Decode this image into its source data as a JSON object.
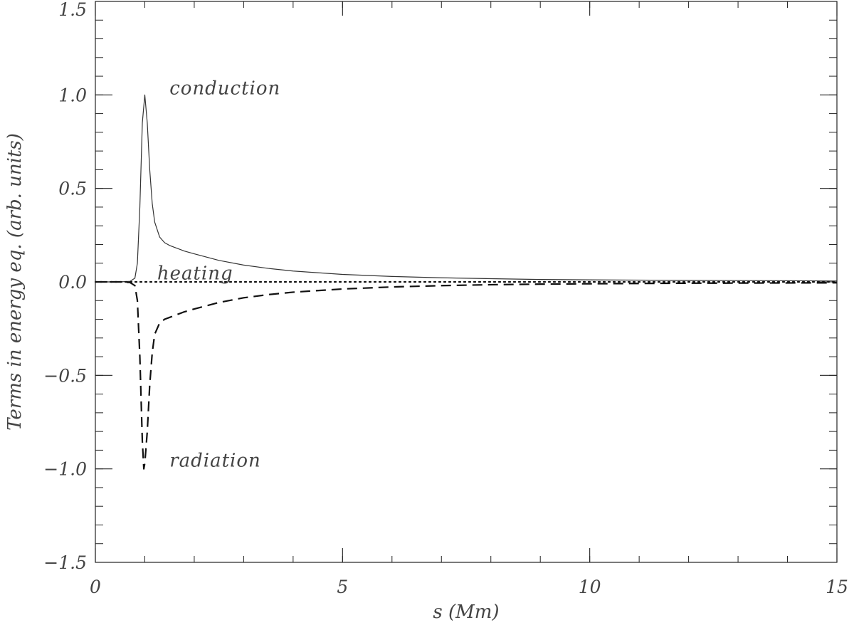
{
  "chart_data": {
    "type": "line",
    "title": "",
    "xlabel": "s (Mm)",
    "ylabel": "Terms in energy eq. (arb. units)",
    "xlim": [
      0,
      15
    ],
    "ylim": [
      -1.5,
      1.5
    ],
    "x_ticks": [
      0,
      5,
      10,
      15
    ],
    "x_tick_labels": [
      "0",
      "5",
      "10",
      "15"
    ],
    "y_ticks": [
      -1.5,
      -1.0,
      -0.5,
      0.0,
      0.5,
      1.0,
      1.5
    ],
    "y_tick_labels": [
      "−1.5",
      "−1.0",
      "−0.5",
      "0.0",
      "0.5",
      "1.0",
      "1.5"
    ],
    "grid": false,
    "series": [
      {
        "name": "conduction",
        "style": "solid",
        "x": [
          0,
          0.5,
          0.7,
          0.8,
          0.85,
          0.9,
          0.95,
          1.0,
          1.05,
          1.1,
          1.15,
          1.2,
          1.3,
          1.4,
          1.5,
          1.6,
          1.8,
          2.0,
          2.5,
          3.0,
          3.5,
          4.0,
          5.0,
          6.0,
          7.0,
          8.0,
          9.0,
          10.0,
          12.0,
          15.0
        ],
        "y": [
          0,
          0,
          0.003,
          0.02,
          0.1,
          0.4,
          0.85,
          1.0,
          0.85,
          0.6,
          0.42,
          0.32,
          0.24,
          0.21,
          0.195,
          0.185,
          0.165,
          0.15,
          0.115,
          0.09,
          0.072,
          0.058,
          0.04,
          0.029,
          0.022,
          0.017,
          0.013,
          0.011,
          0.008,
          0.005
        ]
      },
      {
        "name": "heating",
        "style": "dotted",
        "x": [
          0,
          15
        ],
        "y": [
          0,
          0
        ]
      },
      {
        "name": "radiation",
        "style": "dashed",
        "x": [
          0,
          0.5,
          0.7,
          0.8,
          0.85,
          0.9,
          0.95,
          0.98,
          1.0,
          1.05,
          1.1,
          1.15,
          1.2,
          1.3,
          1.4,
          1.5,
          1.6,
          1.8,
          2.0,
          2.5,
          3.0,
          3.5,
          4.0,
          5.0,
          6.0,
          7.0,
          8.0,
          9.0,
          10.0,
          12.0,
          15.0
        ],
        "y": [
          0,
          0,
          -0.003,
          -0.02,
          -0.1,
          -0.4,
          -0.85,
          -1.0,
          -0.97,
          -0.8,
          -0.55,
          -0.38,
          -0.28,
          -0.22,
          -0.2,
          -0.19,
          -0.18,
          -0.16,
          -0.145,
          -0.11,
          -0.085,
          -0.068,
          -0.055,
          -0.038,
          -0.027,
          -0.02,
          -0.015,
          -0.012,
          -0.01,
          -0.007,
          -0.005
        ]
      }
    ],
    "annotations": [
      {
        "text": "conduction",
        "x": 1.5,
        "y": 1.01
      },
      {
        "text": "heating",
        "x": 1.25,
        "y": 0.02
      },
      {
        "text": "radiation",
        "x": 1.5,
        "y": -0.98
      }
    ]
  }
}
